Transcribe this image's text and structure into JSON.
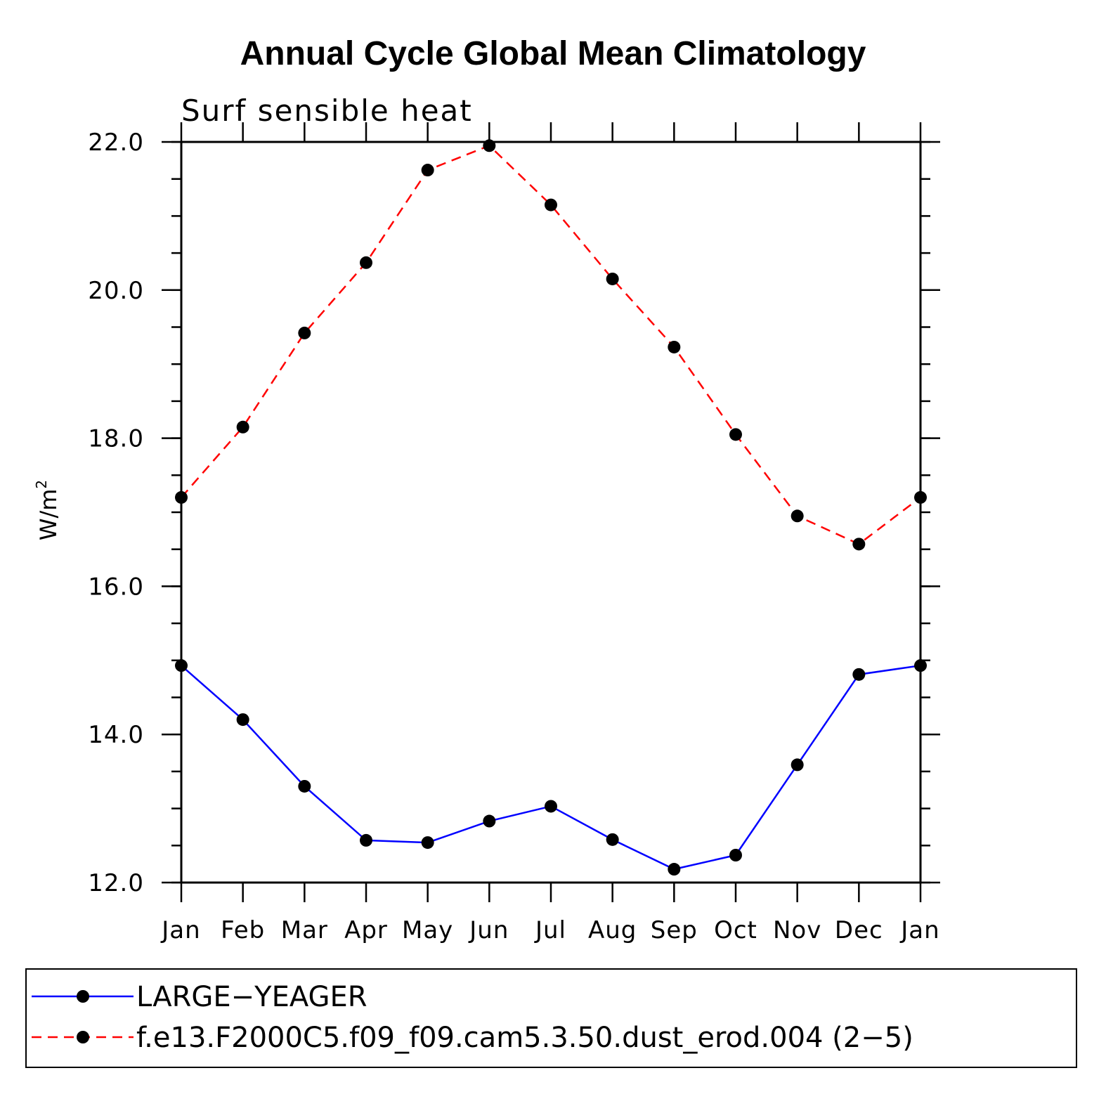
{
  "chart_data": {
    "type": "line",
    "title": "Annual Cycle Global Mean Climatology",
    "subtitle": "Surf sensible heat",
    "ylabel": "W/m",
    "ylabel_superscript": "2",
    "xlabel": "",
    "categories": [
      "Jan",
      "Feb",
      "Mar",
      "Apr",
      "May",
      "Jun",
      "Jul",
      "Aug",
      "Sep",
      "Oct",
      "Nov",
      "Dec",
      "Jan"
    ],
    "ylim": [
      12.0,
      22.0
    ],
    "yticks": [
      "12.0",
      "14.0",
      "16.0",
      "18.0",
      "20.0",
      "22.0"
    ],
    "grid": false,
    "legend_position": "bottom",
    "series": [
      {
        "name": "LARGE−YEAGER",
        "color": "#0000ff",
        "line_style": "solid",
        "marker": "filled-circle",
        "values": [
          14.93,
          14.2,
          13.3,
          12.57,
          12.54,
          12.83,
          13.03,
          12.58,
          12.18,
          12.37,
          13.59,
          14.81,
          14.93
        ]
      },
      {
        "name": "f.e13.F2000C5.f09_f09.cam5.3.50.dust_erod.004 (2−5)",
        "color": "#ff0000",
        "line_style": "dashed",
        "marker": "filled-circle",
        "values": [
          17.2,
          18.15,
          19.42,
          20.37,
          21.62,
          21.95,
          21.15,
          20.15,
          19.23,
          18.05,
          16.95,
          16.57,
          17.2
        ]
      }
    ]
  }
}
